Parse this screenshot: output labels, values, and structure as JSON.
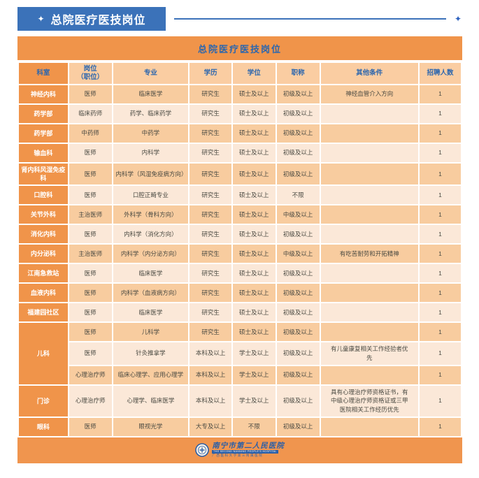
{
  "page": {
    "badge_icon": "✦",
    "badge_label": "总院医疗医技岗位",
    "rule_end_icon": "✦"
  },
  "colors": {
    "accent_blue": "#3B72B9",
    "orange": "#F0944A",
    "footer_orange": "#F0954E",
    "header_peach": "#FACDA2",
    "row_dark": "#F8CC9F",
    "row_light": "#FBE8D8",
    "text_blue": "#2B66AE",
    "text_dark": "#4A4A42"
  },
  "table": {
    "title": "总院医疗医技岗位",
    "columns": [
      "科室",
      "岗位\n（职位）",
      "专业",
      "学历",
      "学位",
      "职称",
      "其他条件",
      "招聘人数"
    ],
    "rows": [
      {
        "dept": "神经内科",
        "dept_span": 1,
        "position": "医师",
        "major": "临床医学",
        "education": "研究生",
        "degree": "硕士及以上",
        "title": "初级及以上",
        "other": "神经血管介入方向",
        "count": "1"
      },
      {
        "dept": "药学部",
        "dept_span": 1,
        "position": "临床药师",
        "major": "药学、临床药学",
        "education": "研究生",
        "degree": "硕士及以上",
        "title": "初级及以上",
        "other": "",
        "count": "1"
      },
      {
        "dept": "药学部",
        "dept_span": 1,
        "position": "中药师",
        "major": "中药学",
        "education": "研究生",
        "degree": "硕士及以上",
        "title": "初级及以上",
        "other": "",
        "count": "1"
      },
      {
        "dept": "输血科",
        "dept_span": 1,
        "position": "医师",
        "major": "内科学",
        "education": "研究生",
        "degree": "硕士及以上",
        "title": "初级及以上",
        "other": "",
        "count": "1"
      },
      {
        "dept": "肾内科风湿免疫科",
        "dept_span": 1,
        "position": "医师",
        "major": "内科学（风湿免疫病方向）",
        "education": "研究生",
        "degree": "硕士及以上",
        "title": "初级及以上",
        "other": "",
        "count": "1"
      },
      {
        "dept": "口腔科",
        "dept_span": 1,
        "position": "医师",
        "major": "口腔正畸专业",
        "education": "研究生",
        "degree": "硕士及以上",
        "title": "不限",
        "other": "",
        "count": "1"
      },
      {
        "dept": "关节外科",
        "dept_span": 1,
        "position": "主治医师",
        "major": "外科学（骨科方向）",
        "education": "研究生",
        "degree": "硕士及以上",
        "title": "中级及以上",
        "other": "",
        "count": "1"
      },
      {
        "dept": "消化内科",
        "dept_span": 1,
        "position": "医师",
        "major": "内科学（消化方向）",
        "education": "研究生",
        "degree": "硕士及以上",
        "title": "初级及以上",
        "other": "",
        "count": "1"
      },
      {
        "dept": "内分泌科",
        "dept_span": 1,
        "position": "主治医师",
        "major": "内科学（内分泌方向）",
        "education": "研究生",
        "degree": "硕士及以上",
        "title": "中级及以上",
        "other": "有吃苦耐劳和开拓精神",
        "count": "1"
      },
      {
        "dept": "江南急救站",
        "dept_span": 1,
        "position": "医师",
        "major": "临床医学",
        "education": "研究生",
        "degree": "硕士及以上",
        "title": "初级及以上",
        "other": "",
        "count": "1"
      },
      {
        "dept": "血液内科",
        "dept_span": 1,
        "position": "医师",
        "major": "内科学（血液病方向）",
        "education": "研究生",
        "degree": "硕士及以上",
        "title": "初级及以上",
        "other": "",
        "count": "1"
      },
      {
        "dept": "福建园社区",
        "dept_span": 1,
        "position": "医师",
        "major": "临床医学",
        "education": "研究生",
        "degree": "硕士及以上",
        "title": "初级及以上",
        "other": "",
        "count": "1"
      },
      {
        "dept": "儿科",
        "dept_span": 3,
        "position": "医师",
        "major": "儿科学",
        "education": "研究生",
        "degree": "硕士及以上",
        "title": "初级及以上",
        "other": "",
        "count": "1"
      },
      {
        "dept": null,
        "position": "医师",
        "major": "针灸推拿学",
        "education": "本科及以上",
        "degree": "学士及以上",
        "title": "初级及以上",
        "other": "有儿童康复相关工作经验者优先",
        "count": "1"
      },
      {
        "dept": null,
        "position": "心理治疗师",
        "major": "临床心理学、应用心理学",
        "education": "本科及以上",
        "degree": "学士及以上",
        "title": "初级及以上",
        "other": "",
        "count": "1"
      },
      {
        "dept": "门诊",
        "dept_span": 1,
        "position": "心理治疗师",
        "major": "心理学、临床医学",
        "education": "本科及以上",
        "degree": "学士及以上",
        "title": "初级及以上",
        "other": "具有心理治疗师资格证书，有中级心理治疗师资格证或三甲医院相关工作经历优先",
        "count": "1"
      },
      {
        "dept": "眼科",
        "dept_span": 1,
        "position": "医师",
        "major": "眼视光学",
        "education": "大专及以上",
        "degree": "不限",
        "title": "初级及以上",
        "other": "",
        "count": "1"
      }
    ]
  },
  "footer": {
    "hospital_name": "南宁市第二人民医院",
    "hospital_name_en": "THE SECOND NANNING PEOPLE'S HOSPITAL",
    "hospital_affiliation": "广西医科大学第三附属医院"
  }
}
